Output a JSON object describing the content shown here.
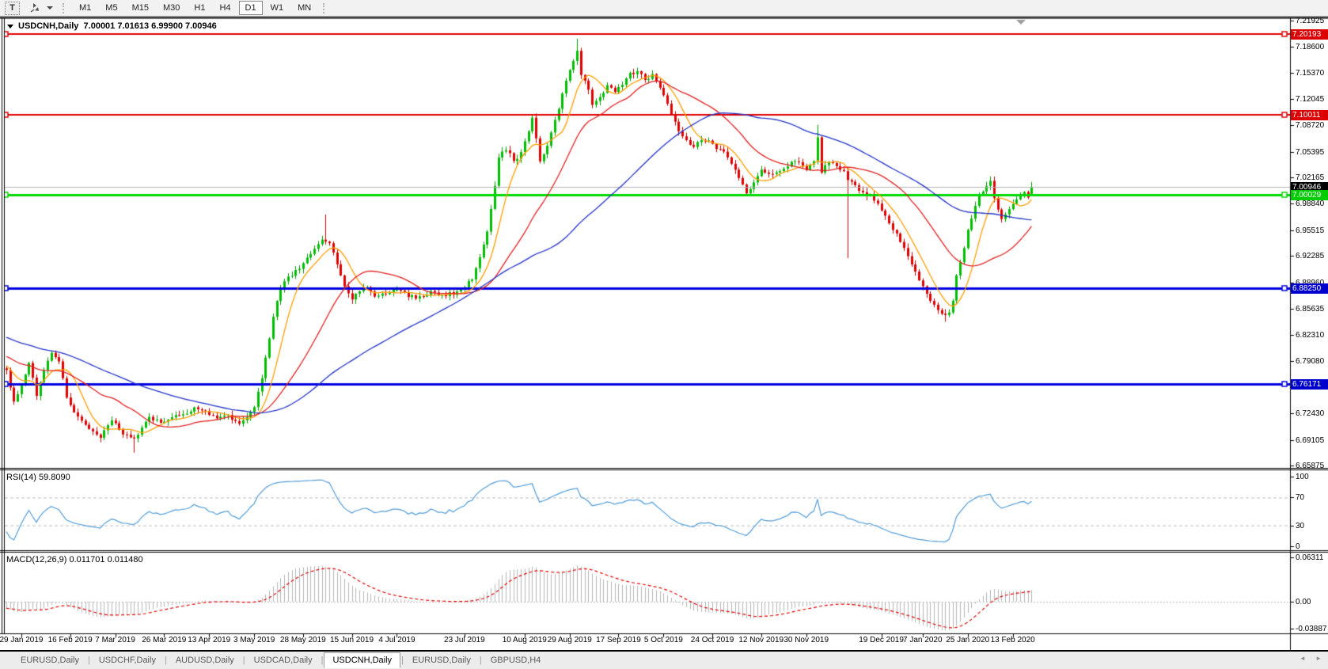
{
  "toolbar": {
    "text_tool_label": "T",
    "timeframes": [
      "M1",
      "M5",
      "M15",
      "M30",
      "H1",
      "H4",
      "D1",
      "W1",
      "MN"
    ],
    "active_timeframe": "D1"
  },
  "chart": {
    "title": "USDCNH,Daily",
    "ohlc_text": "7.00001 7.01613 6.99900 7.00946",
    "price_axis_ticks": [
      "7.21925",
      "7.18600",
      "7.15370",
      "7.12045",
      "7.08720",
      "7.05395",
      "7.02165",
      "6.98840",
      "6.95515",
      "6.92285",
      "6.88960",
      "6.85635",
      "6.82310",
      "6.79080",
      "6.75755",
      "6.72430",
      "6.69105",
      "6.65875"
    ],
    "price_badges": [
      {
        "text": "7.20193",
        "bg": "#dd0000",
        "fg": "#ffffff"
      },
      {
        "text": "7.10011",
        "bg": "#dd0000",
        "fg": "#ffffff"
      },
      {
        "text": "7.00946",
        "bg": "#000000",
        "fg": "#ffffff"
      },
      {
        "text": "7.00029",
        "bg": "#00cc00",
        "fg": "#ffffff"
      },
      {
        "text": "6.88250",
        "bg": "#0000cc",
        "fg": "#ffffff"
      },
      {
        "text": "6.76171",
        "bg": "#0000cc",
        "fg": "#ffffff"
      }
    ]
  },
  "rsi_panel": {
    "label": "RSI(14) 59.8090",
    "axis_ticks": [
      "100",
      "70",
      "30",
      "0"
    ]
  },
  "macd_panel": {
    "label": "MACD(12,26,9) 0.011701 0.011480",
    "axis_ticks": [
      "0.06311",
      "0.00",
      "-0.03887"
    ]
  },
  "tabs": {
    "items": [
      "EURUSD,Daily",
      "USDCHF,Daily",
      "AUDUSD,Daily",
      "USDCAD,Daily",
      "USDCNH,Daily",
      "EURUSD,Daily",
      "GBPUSD,H4"
    ],
    "active_index": 4,
    "scroll_left_icon": "◄",
    "scroll_right_icon": "►"
  },
  "chart_data": {
    "type": "candlestick",
    "symbol": "USDCNH",
    "timeframe": "Daily",
    "visible_range": {
      "start": "29 Jan 2019",
      "end": "13 Feb 2020"
    },
    "current_bar_ohlc": {
      "open": 7.00001,
      "high": 7.01613,
      "low": 6.999,
      "close": 7.00946
    },
    "colors": {
      "bull": "#00be00",
      "bull_wick": "#009a00",
      "bear": "#e00000",
      "bear_wick": "#c00000",
      "ma_fast": "#ff9d00",
      "ma_mid": "#e02020",
      "ma_slow": "#2334c8",
      "rsi_line": "#4f9bd8",
      "macd_hist": "#b4b4b4",
      "macd_signal": "#e00000",
      "grid_dash": "#bcbcbc"
    },
    "horizontal_levels": [
      {
        "price": 7.20193,
        "color": "#e00000",
        "width": 2,
        "handles": true
      },
      {
        "price": 7.10011,
        "color": "#e00000",
        "width": 2,
        "handles": true
      },
      {
        "price": 7.00946,
        "color": "#b0b0b0",
        "width": 1,
        "handles": false,
        "role": "current-price-line"
      },
      {
        "price": 7.00029,
        "color": "#00d800",
        "width": 3,
        "handles": true
      },
      {
        "price": 6.8825,
        "color": "#0000e0",
        "width": 3,
        "handles": true
      },
      {
        "price": 6.76171,
        "color": "#0000e0",
        "width": 3,
        "handles": true
      }
    ],
    "moving_averages": [
      {
        "period": 8,
        "color": "#ff9d00"
      },
      {
        "period": 25,
        "color": "#e02020"
      },
      {
        "period": 60,
        "color": "#2334c8"
      }
    ],
    "indicators": [
      {
        "name": "RSI",
        "period": 14,
        "value": 59.809,
        "levels": [
          70,
          30
        ]
      },
      {
        "name": "MACD",
        "params": [
          12,
          26,
          9
        ],
        "values": [
          0.011701,
          0.01148
        ]
      }
    ],
    "close_path_anchors": [
      [
        0,
        6.78
      ],
      [
        2,
        6.738
      ],
      [
        4,
        6.76
      ],
      [
        6,
        6.79
      ],
      [
        8,
        6.748
      ],
      [
        10,
        6.778
      ],
      [
        12,
        6.8
      ],
      [
        14,
        6.792
      ],
      [
        16,
        6.745
      ],
      [
        18,
        6.728
      ],
      [
        20,
        6.715
      ],
      [
        23,
        6.7
      ],
      [
        25,
        6.695
      ],
      [
        28,
        6.716
      ],
      [
        31,
        6.7
      ],
      [
        34,
        6.692
      ],
      [
        36,
        6.706
      ],
      [
        38,
        6.718
      ],
      [
        41,
        6.714
      ],
      [
        44,
        6.72
      ],
      [
        47,
        6.723
      ],
      [
        50,
        6.73
      ],
      [
        53,
        6.726
      ],
      [
        56,
        6.72
      ],
      [
        59,
        6.722
      ],
      [
        62,
        6.71
      ],
      [
        64,
        6.718
      ],
      [
        66,
        6.732
      ],
      [
        68,
        6.77
      ],
      [
        70,
        6.82
      ],
      [
        72,
        6.868
      ],
      [
        74,
        6.89
      ],
      [
        76,
        6.9
      ],
      [
        79,
        6.912
      ],
      [
        82,
        6.932
      ],
      [
        84,
        6.945
      ],
      [
        86,
        6.94
      ],
      [
        88,
        6.912
      ],
      [
        90,
        6.885
      ],
      [
        92,
        6.868
      ],
      [
        94,
        6.878
      ],
      [
        96,
        6.885
      ],
      [
        98,
        6.872
      ],
      [
        101,
        6.876
      ],
      [
        104,
        6.88
      ],
      [
        107,
        6.872
      ],
      [
        110,
        6.87
      ],
      [
        113,
        6.878
      ],
      [
        116,
        6.873
      ],
      [
        119,
        6.876
      ],
      [
        122,
        6.884
      ],
      [
        124,
        6.895
      ],
      [
        126,
        6.92
      ],
      [
        128,
        6.955
      ],
      [
        130,
        7.01
      ],
      [
        131,
        7.048
      ],
      [
        133,
        7.058
      ],
      [
        135,
        7.042
      ],
      [
        137,
        7.052
      ],
      [
        139,
        7.08
      ],
      [
        140,
        7.098
      ],
      [
        142,
        7.042
      ],
      [
        144,
        7.062
      ],
      [
        146,
        7.092
      ],
      [
        148,
        7.128
      ],
      [
        150,
        7.158
      ],
      [
        152,
        7.18
      ],
      [
        153,
        7.152
      ],
      [
        155,
        7.132
      ],
      [
        156,
        7.112
      ],
      [
        158,
        7.122
      ],
      [
        160,
        7.136
      ],
      [
        162,
        7.13
      ],
      [
        164,
        7.14
      ],
      [
        166,
        7.152
      ],
      [
        168,
        7.156
      ],
      [
        170,
        7.144
      ],
      [
        172,
        7.15
      ],
      [
        175,
        7.124
      ],
      [
        177,
        7.102
      ],
      [
        179,
        7.082
      ],
      [
        181,
        7.068
      ],
      [
        183,
        7.062
      ],
      [
        185,
        7.07
      ],
      [
        187,
        7.066
      ],
      [
        189,
        7.058
      ],
      [
        191,
        7.052
      ],
      [
        193,
        7.04
      ],
      [
        195,
        7.02
      ],
      [
        197,
        7.002
      ],
      [
        199,
        7.014
      ],
      [
        201,
        7.03
      ],
      [
        203,
        7.026
      ],
      [
        205,
        7.028
      ],
      [
        207,
        7.032
      ],
      [
        209,
        7.04
      ],
      [
        211,
        7.04
      ],
      [
        213,
        7.032
      ],
      [
        215,
        7.04
      ],
      [
        216,
        7.07
      ],
      [
        217,
        7.03
      ],
      [
        219,
        7.04
      ],
      [
        221,
        7.035
      ],
      [
        223,
        7.028
      ],
      [
        224,
        7.02
      ],
      [
        226,
        7.012
      ],
      [
        228,
        7.002
      ],
      [
        230,
        6.998
      ],
      [
        232,
        6.99
      ],
      [
        234,
        6.972
      ],
      [
        236,
        6.956
      ],
      [
        238,
        6.942
      ],
      [
        240,
        6.922
      ],
      [
        242,
        6.904
      ],
      [
        244,
        6.884
      ],
      [
        246,
        6.866
      ],
      [
        248,
        6.856
      ],
      [
        250,
        6.847
      ],
      [
        251,
        6.852
      ],
      [
        252,
        6.868
      ],
      [
        253,
        6.898
      ],
      [
        254,
        6.916
      ],
      [
        255,
        6.934
      ],
      [
        256,
        6.955
      ],
      [
        257,
        6.97
      ],
      [
        258,
        6.985
      ],
      [
        259,
        6.998
      ],
      [
        260,
        7.006
      ],
      [
        261,
        7.012
      ],
      [
        262,
        7.018
      ],
      [
        263,
        6.995
      ],
      [
        264,
        6.98
      ],
      [
        265,
        6.97
      ],
      [
        266,
        6.976
      ],
      [
        267,
        6.982
      ],
      [
        268,
        6.988
      ],
      [
        269,
        6.994
      ],
      [
        270,
        7.0
      ],
      [
        271,
        7.004
      ],
      [
        272,
        6.998
      ],
      [
        273,
        7.009
      ]
    ],
    "wick_extremes": [
      {
        "bar": 25,
        "low": 6.688
      },
      {
        "bar": 34,
        "low": 6.675
      },
      {
        "bar": 85,
        "high": 6.975
      },
      {
        "bar": 152,
        "high": 7.1965
      },
      {
        "bar": 216,
        "high": 7.088
      },
      {
        "bar": 224,
        "low": 6.92
      },
      {
        "bar": 250,
        "low": 6.84
      }
    ],
    "date_ticks": [
      {
        "label": "29 Jan 2019",
        "bar": 4
      },
      {
        "label": "16 Feb 2019",
        "bar": 17
      },
      {
        "label": "7 Mar 2019",
        "bar": 29
      },
      {
        "label": "26 Mar 2019",
        "bar": 42
      },
      {
        "label": "13 Apr 2019",
        "bar": 54
      },
      {
        "label": "3 May 2019",
        "bar": 66
      },
      {
        "label": "28 May 2019",
        "bar": 79
      },
      {
        "label": "15 Jun 2019",
        "bar": 92
      },
      {
        "label": "4 Jul 2019",
        "bar": 104
      },
      {
        "label": "23 Jul 2019",
        "bar": 122
      },
      {
        "label": "10 Aug 2019",
        "bar": 138
      },
      {
        "label": "29 Aug 2019",
        "bar": 150
      },
      {
        "label": "17 Sep 2019",
        "bar": 163
      },
      {
        "label": "5 Oct 2019",
        "bar": 175
      },
      {
        "label": "24 Oct 2019",
        "bar": 188
      },
      {
        "label": "12 Nov 2019",
        "bar": 201
      },
      {
        "label": "30 Nov 2019",
        "bar": 213
      },
      {
        "label": "19 Dec 2019",
        "bar": 233
      },
      {
        "label": "7 Jan 2020",
        "bar": 244
      },
      {
        "label": "25 Jan 2020",
        "bar": 256
      },
      {
        "label": "13 Feb 2020",
        "bar": 268
      }
    ]
  }
}
